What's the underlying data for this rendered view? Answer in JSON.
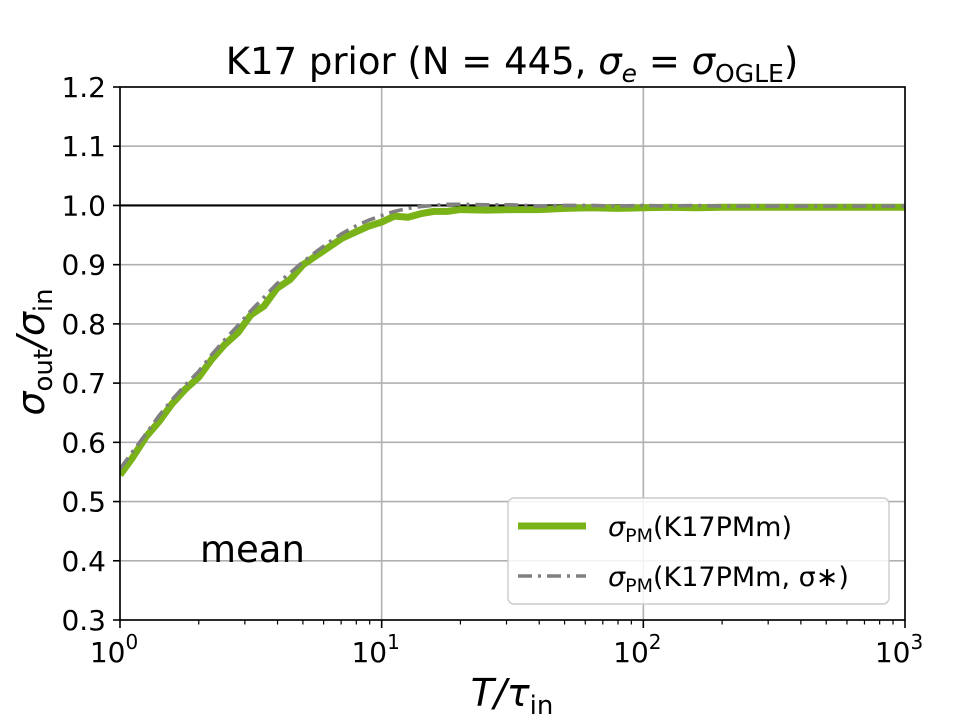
{
  "chart_data": {
    "type": "line",
    "title": "K17 prior (N = 445, σe = σOGLE)",
    "title_parts": {
      "main": "K17 prior (N = 445, ",
      "sigma1": "σ",
      "sub1": "e",
      "eq": " = ",
      "sigma2": "σ",
      "sub2": "OGLE",
      "close": ")"
    },
    "xlabel": "T/τin",
    "xlabel_parts": {
      "main": "T/τ",
      "sub": "in"
    },
    "ylabel": "σout/σin",
    "ylabel_parts": {
      "s1": "σ",
      "sub1": "out",
      "slash": "/σ",
      "sub2": "in"
    },
    "x_scale": "log",
    "xlim": [
      1,
      1000
    ],
    "ylim": [
      0.3,
      1.2
    ],
    "grid": true,
    "x_ticks": [
      {
        "value": 1,
        "base": "10",
        "exp": "0"
      },
      {
        "value": 10,
        "base": "10",
        "exp": "1"
      },
      {
        "value": 100,
        "base": "10",
        "exp": "2"
      },
      {
        "value": 1000,
        "base": "10",
        "exp": "3"
      }
    ],
    "y_ticks": [
      0.3,
      0.4,
      0.5,
      0.6,
      0.7,
      0.8,
      0.9,
      1.0,
      1.1,
      1.2
    ],
    "y_tick_labels": [
      "0.3",
      "0.4",
      "0.5",
      "0.6",
      "0.7",
      "0.8",
      "0.9",
      "1.0",
      "1.1",
      "1.2"
    ],
    "reference_line": {
      "y": 1.0,
      "color": "#000000"
    },
    "annotation": "mean",
    "legend_position": "lower-right",
    "series": [
      {
        "name": "σPM(K17PMm)",
        "label_parts": {
          "s": "σ",
          "sub": "PM",
          "rest": "(K17PMm)"
        },
        "style": "solid",
        "color": "#7ab317",
        "x": [
          1.0,
          1.12,
          1.26,
          1.41,
          1.58,
          1.78,
          2.0,
          2.24,
          2.51,
          2.82,
          3.16,
          3.55,
          3.98,
          4.47,
          5.01,
          5.62,
          6.31,
          7.08,
          7.94,
          8.91,
          10.0,
          11.2,
          12.6,
          14.1,
          15.8,
          17.8,
          20.0,
          25.1,
          31.6,
          39.8,
          50.1,
          63.1,
          79.4,
          100,
          126,
          158,
          200,
          251,
          316,
          398,
          501,
          631,
          794,
          1000
        ],
        "y": [
          0.545,
          0.575,
          0.61,
          0.635,
          0.665,
          0.69,
          0.71,
          0.74,
          0.765,
          0.785,
          0.815,
          0.83,
          0.86,
          0.875,
          0.9,
          0.915,
          0.93,
          0.945,
          0.955,
          0.965,
          0.972,
          0.982,
          0.98,
          0.986,
          0.99,
          0.99,
          0.993,
          0.992,
          0.993,
          0.993,
          0.995,
          0.996,
          0.995,
          0.996,
          0.997,
          0.996,
          0.997,
          0.997,
          0.997,
          0.997,
          0.997,
          0.997,
          0.997,
          0.997
        ]
      },
      {
        "name": "σPM(K17PMm, σ∗)",
        "label_parts": {
          "s": "σ",
          "sub": "PM",
          "rest": "(K17PMm, σ∗)"
        },
        "style": "dashdot",
        "color": "#808080",
        "x": [
          1.0,
          1.12,
          1.26,
          1.41,
          1.58,
          1.78,
          2.0,
          2.24,
          2.51,
          2.82,
          3.16,
          3.55,
          3.98,
          4.47,
          5.01,
          5.62,
          6.31,
          7.08,
          7.94,
          8.91,
          10.0,
          11.2,
          12.6,
          14.1,
          15.8,
          17.8,
          20.0,
          25.1,
          31.6,
          39.8,
          50.1,
          63.1,
          79.4,
          100,
          126,
          158,
          200,
          251,
          316,
          398,
          501,
          631,
          794,
          1000
        ],
        "y": [
          0.555,
          0.585,
          0.615,
          0.645,
          0.672,
          0.697,
          0.72,
          0.748,
          0.773,
          0.797,
          0.822,
          0.845,
          0.868,
          0.886,
          0.905,
          0.922,
          0.938,
          0.953,
          0.965,
          0.975,
          0.983,
          0.99,
          0.995,
          0.998,
          1.0,
          1.002,
          1.002,
          1.001,
          1.001,
          0.999,
          1.0,
          1.0,
          0.999,
          1.0,
          0.999,
          1.0,
          0.999,
          0.999,
          0.999,
          0.999,
          0.999,
          0.999,
          0.999,
          0.999
        ]
      }
    ]
  }
}
